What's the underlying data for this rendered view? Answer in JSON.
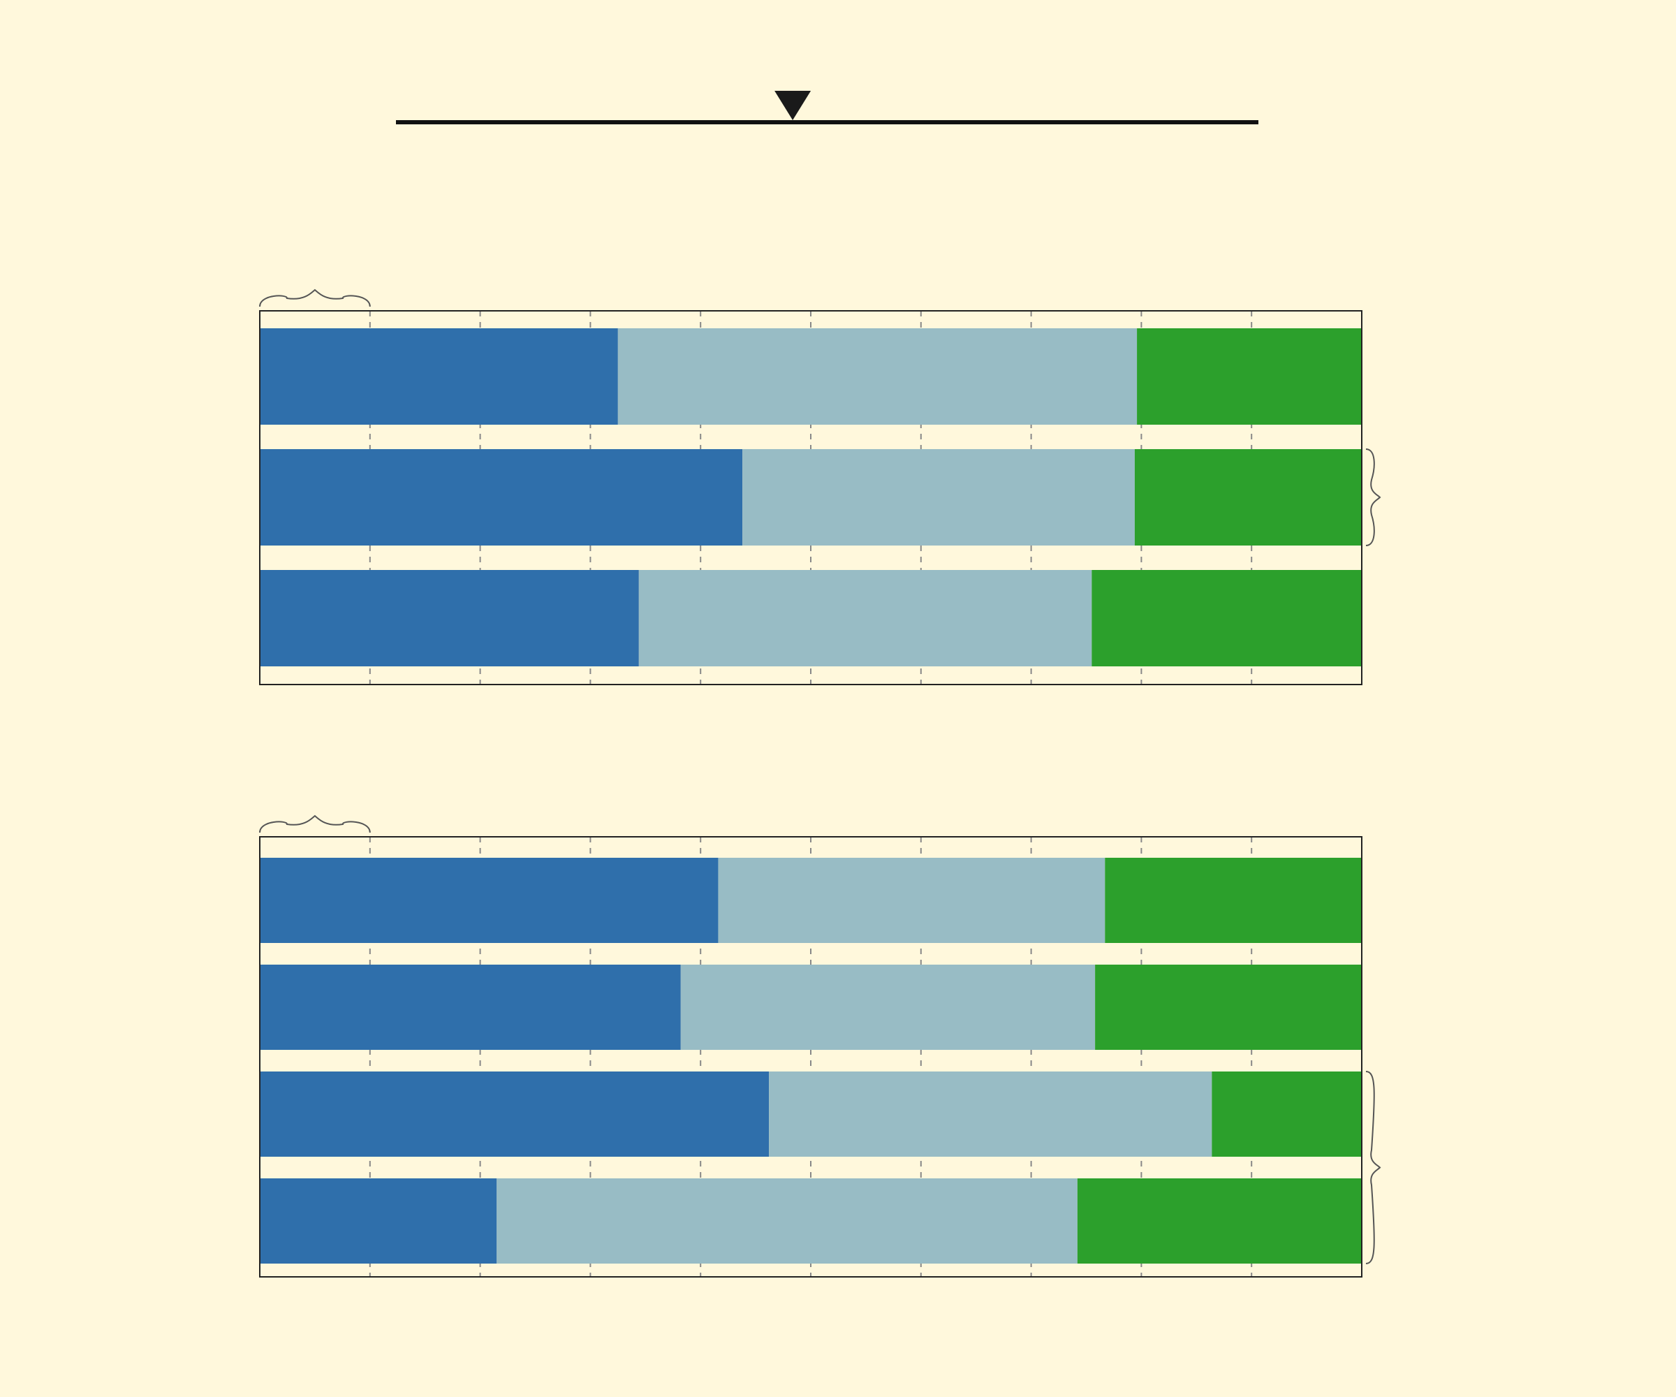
{
  "colors": {
    "background": "#fff8dc",
    "segment_1": "#2f6fab",
    "segment_2": "#98bcc5",
    "segment_3": "#2ca02c",
    "frame": "#222222",
    "grid": "#888888",
    "brace": "#555555",
    "marker": "#1a1a1a"
  },
  "slider": {
    "value": 0.46
  },
  "chart_data": [
    {
      "type": "bar",
      "orientation": "horizontal",
      "stacked": true,
      "normalized": true,
      "xlim": [
        0,
        1
      ],
      "x_gridlines": [
        0.1,
        0.2,
        0.3,
        0.4,
        0.5,
        0.6,
        0.7,
        0.8,
        0.9
      ],
      "grid": true,
      "legend": "none",
      "title": "",
      "xlabel": "",
      "ylabel": "",
      "bars": [
        {
          "segments": [
            0.325,
            0.471,
            0.204
          ]
        },
        {
          "segments": [
            0.438,
            0.356,
            0.206
          ]
        },
        {
          "segments": [
            0.344,
            0.411,
            0.245
          ]
        }
      ],
      "annotations": {
        "top_brace": {
          "from": 0.0,
          "to": 0.1
        },
        "side_brace": {
          "from_bar": 1,
          "to_bar": 1
        }
      }
    },
    {
      "type": "bar",
      "orientation": "horizontal",
      "stacked": true,
      "normalized": true,
      "xlim": [
        0,
        1
      ],
      "x_gridlines": [
        0.1,
        0.2,
        0.3,
        0.4,
        0.5,
        0.6,
        0.7,
        0.8,
        0.9
      ],
      "grid": true,
      "legend": "none",
      "title": "",
      "xlabel": "",
      "ylabel": "",
      "bars": [
        {
          "segments": [
            0.416,
            0.351,
            0.233
          ]
        },
        {
          "segments": [
            0.382,
            0.376,
            0.242
          ]
        },
        {
          "segments": [
            0.462,
            0.402,
            0.136
          ]
        },
        {
          "segments": [
            0.215,
            0.527,
            0.258
          ]
        }
      ],
      "annotations": {
        "top_brace": {
          "from": 0.0,
          "to": 0.1
        },
        "side_brace": {
          "from_bar": 2,
          "to_bar": 3
        }
      }
    }
  ]
}
